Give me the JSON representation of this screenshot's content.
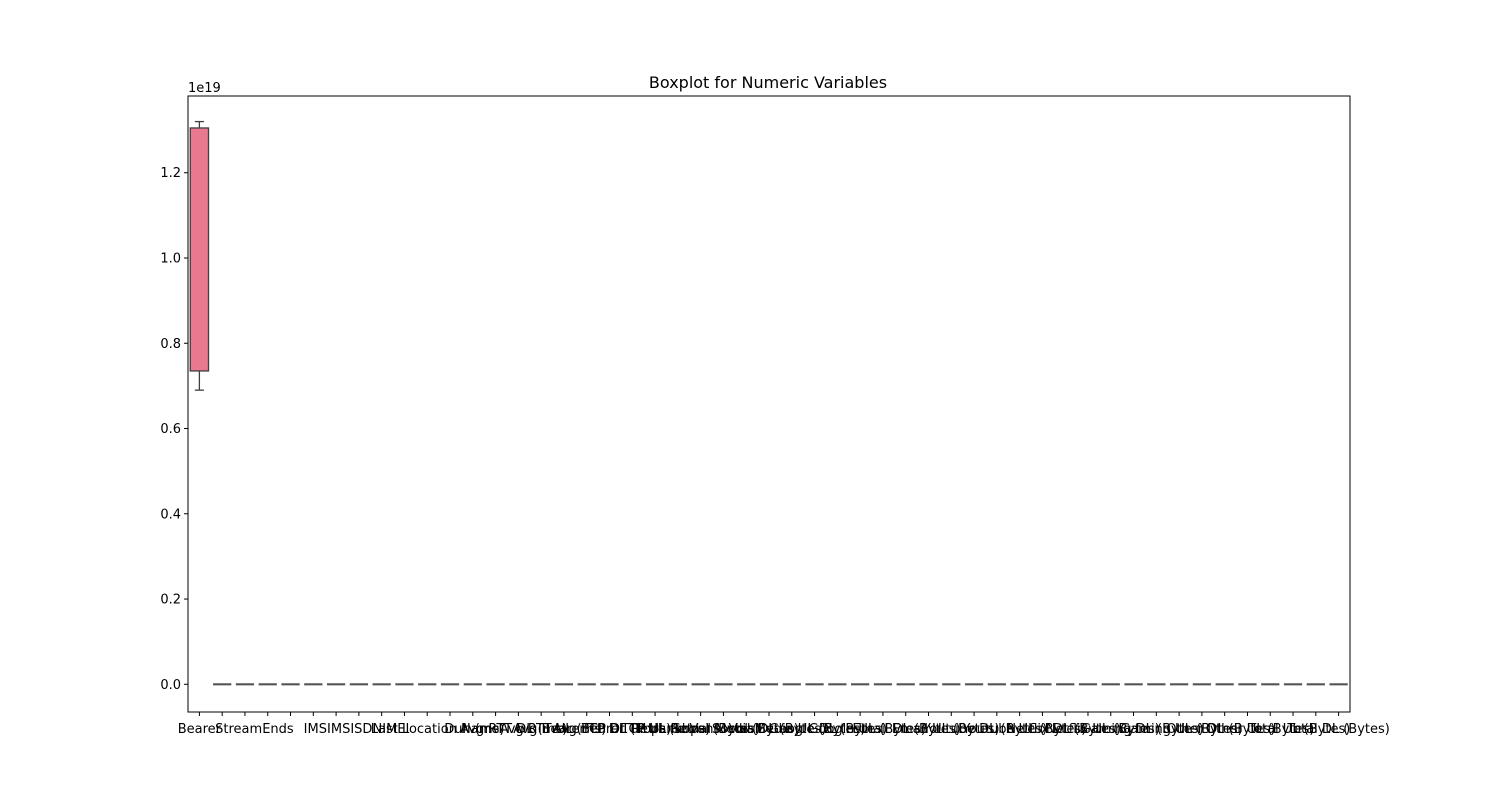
{
  "chart_data": {
    "type": "box",
    "title": "Boxplot for Numeric Variables",
    "xlabel": "",
    "ylabel": "",
    "y_offset_label": "1e19",
    "y_scale": 1e+19,
    "ylim": [
      -0.065,
      1.38
    ],
    "y_ticks": [
      0.0,
      0.2,
      0.4,
      0.6,
      0.8,
      1.0,
      1.2
    ],
    "y_tick_labels": [
      "0.0",
      "0.2",
      "0.4",
      "0.6",
      "0.8",
      "1.0",
      "1.2"
    ],
    "x_tick_labels_visible": [
      "Bearer",
      "Stream",
      "Ends",
      "IMSI",
      "MSISDN",
      "IMEI",
      "Last Location Name",
      "Dur. (ms)",
      "Avg RTT DL (ms)",
      "Avg RTT UL (ms)",
      "Avg Bearer TP DL (kbps)",
      "Avg Bearer TP UL (kbps)",
      "TCP DL Retrans. Vol (Bytes)",
      "TCP UL Retrans. Vol (Bytes)",
      "Social Media DL (Bytes)",
      "Social Media UL (Bytes)",
      "Google DL (Bytes)",
      "Google UL (Bytes)",
      "Email DL (Bytes)",
      "Email UL (Bytes)",
      "Youtube DL (Bytes)",
      "Youtube UL (Bytes)",
      "Netflix DL (Bytes)",
      "Netflix UL (Bytes)",
      "Gaming DL (Bytes)",
      "Gaming UL (Bytes)",
      "Other DL (Bytes)",
      "Other UL (Bytes)",
      "Total UL (Bytes)",
      "Total DL (Bytes)"
    ],
    "first_series": {
      "color": "#e8798f",
      "whisker_low": 0.69,
      "q1": 0.735,
      "q3": 1.305,
      "whisker_high": 1.32
    },
    "flat_series_count": 50,
    "flat_series_value": 0.0,
    "flat_series_color": "#555555"
  }
}
